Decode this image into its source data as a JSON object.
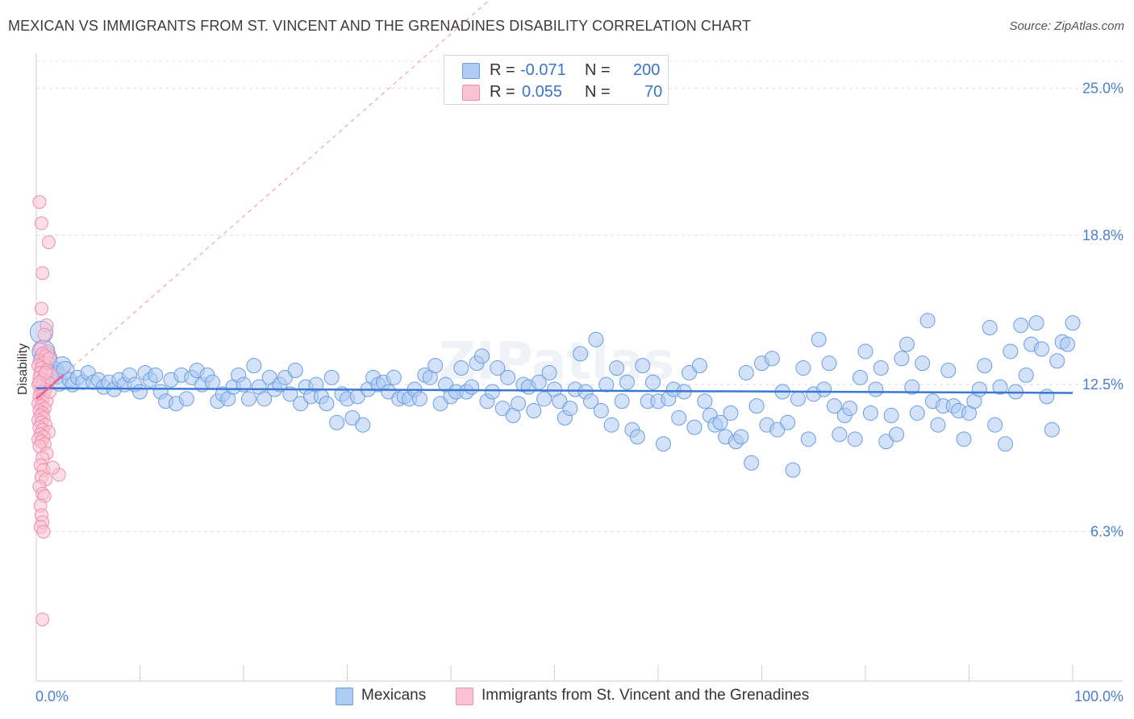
{
  "title": "MEXICAN VS IMMIGRANTS FROM ST. VINCENT AND THE GRENADINES DISABILITY CORRELATION CHART",
  "source": "Source: ZipAtlas.com",
  "watermark": "ZIPatlas",
  "legend": {
    "rows": [
      {
        "r_label": "R =",
        "r_value": "-0.071",
        "n_label": "N =",
        "n_value": "200",
        "color": "#aecbf2",
        "border": "#6b9de0"
      },
      {
        "r_label": "R =",
        "r_value": "0.055",
        "n_label": "N =",
        "n_value": "70",
        "color": "#f9c3d3",
        "border": "#ee8fac"
      }
    ]
  },
  "bottom_legend": [
    {
      "label": "Mexicans",
      "color": "#aecbf2",
      "border": "#6b9de0"
    },
    {
      "label": "Immigrants from St. Vincent and the Grenadines",
      "color": "#f9c3d3",
      "border": "#ee8fac"
    }
  ],
  "chart_data": {
    "type": "scatter",
    "title": "MEXICAN VS IMMIGRANTS FROM ST. VINCENT AND THE GRENADINES DISABILITY CORRELATION CHART",
    "xlabel": "",
    "ylabel": "Disability",
    "xlim": [
      0,
      100
    ],
    "ylim": [
      0,
      26.2
    ],
    "x_tick_labels": [
      "0.0%",
      "100.0%"
    ],
    "y_ticks": [
      6.3,
      12.5,
      18.8,
      25.0
    ],
    "y_tick_labels": [
      "6.3%",
      "12.5%",
      "18.8%",
      "25.0%"
    ],
    "grid": true,
    "legend_position": "top-center",
    "colors": {
      "mexicans": "#6b9de0",
      "mexicans_fill": "#aecbf2",
      "svg": "#ee8fac",
      "svg_fill": "#f9c3d3",
      "trend_blue": "#3a78d4",
      "trend_pink": "#e8618f"
    },
    "series": [
      {
        "name": "Mexicans",
        "R": -0.071,
        "N": 200,
        "trend": {
          "x": [
            0,
            100
          ],
          "y": [
            12.35,
            12.15
          ]
        },
        "points": [
          [
            0.5,
            14.7
          ],
          [
            0.7,
            13.9
          ],
          [
            0.9,
            13.6
          ],
          [
            1.2,
            13.3
          ],
          [
            1.5,
            13.0
          ],
          [
            1.8,
            13.1
          ],
          [
            2.0,
            12.9
          ],
          [
            2.2,
            12.6
          ],
          [
            2.5,
            13.3
          ],
          [
            2.8,
            13.1
          ],
          [
            3.2,
            12.7
          ],
          [
            3.5,
            12.5
          ],
          [
            4.0,
            12.8
          ],
          [
            4.5,
            12.6
          ],
          [
            5.0,
            13.0
          ],
          [
            5.5,
            12.6
          ],
          [
            6.0,
            12.7
          ],
          [
            6.5,
            12.4
          ],
          [
            7.0,
            12.6
          ],
          [
            7.5,
            12.3
          ],
          [
            8.0,
            12.7
          ],
          [
            8.5,
            12.5
          ],
          [
            9.0,
            12.9
          ],
          [
            9.5,
            12.5
          ],
          [
            10.0,
            12.2
          ],
          [
            10.5,
            13.0
          ],
          [
            11.0,
            12.7
          ],
          [
            11.5,
            12.9
          ],
          [
            12.0,
            12.2
          ],
          [
            12.5,
            11.8
          ],
          [
            13.0,
            12.7
          ],
          [
            13.5,
            11.7
          ],
          [
            14.0,
            12.9
          ],
          [
            14.5,
            11.9
          ],
          [
            15.0,
            12.8
          ],
          [
            15.5,
            13.1
          ],
          [
            16.0,
            12.5
          ],
          [
            16.5,
            12.9
          ],
          [
            17.0,
            12.6
          ],
          [
            17.5,
            11.8
          ],
          [
            18.0,
            12.1
          ],
          [
            18.5,
            11.9
          ],
          [
            19.0,
            12.4
          ],
          [
            19.5,
            12.9
          ],
          [
            20.0,
            12.5
          ],
          [
            20.5,
            11.9
          ],
          [
            21.0,
            13.3
          ],
          [
            21.5,
            12.4
          ],
          [
            22.0,
            11.9
          ],
          [
            22.5,
            12.8
          ],
          [
            23.0,
            12.3
          ],
          [
            23.5,
            12.5
          ],
          [
            24.0,
            12.8
          ],
          [
            24.5,
            12.1
          ],
          [
            25.0,
            13.1
          ],
          [
            25.5,
            11.7
          ],
          [
            26.0,
            12.4
          ],
          [
            26.5,
            12.0
          ],
          [
            27.0,
            12.5
          ],
          [
            27.5,
            12.0
          ],
          [
            28.0,
            11.7
          ],
          [
            28.5,
            12.8
          ],
          [
            29.0,
            10.9
          ],
          [
            29.5,
            12.1
          ],
          [
            30.0,
            11.9
          ],
          [
            30.5,
            11.1
          ],
          [
            31.0,
            12.0
          ],
          [
            31.5,
            10.8
          ],
          [
            32.0,
            12.3
          ],
          [
            32.5,
            12.8
          ],
          [
            33.0,
            12.5
          ],
          [
            33.5,
            12.6
          ],
          [
            34.0,
            12.2
          ],
          [
            34.5,
            12.8
          ],
          [
            35.0,
            11.9
          ],
          [
            35.5,
            12.0
          ],
          [
            36.0,
            11.9
          ],
          [
            36.5,
            12.3
          ],
          [
            37.0,
            11.9
          ],
          [
            37.5,
            12.9
          ],
          [
            38.0,
            12.8
          ],
          [
            38.5,
            13.3
          ],
          [
            39.0,
            11.7
          ],
          [
            39.5,
            12.5
          ],
          [
            40.0,
            12.0
          ],
          [
            40.5,
            12.2
          ],
          [
            41.0,
            13.2
          ],
          [
            41.5,
            12.2
          ],
          [
            42.0,
            12.4
          ],
          [
            42.5,
            13.4
          ],
          [
            43.0,
            13.7
          ],
          [
            43.5,
            11.8
          ],
          [
            44.0,
            12.2
          ],
          [
            44.5,
            13.2
          ],
          [
            45.0,
            11.5
          ],
          [
            45.5,
            12.8
          ],
          [
            46.0,
            11.2
          ],
          [
            46.5,
            11.7
          ],
          [
            47.0,
            12.5
          ],
          [
            47.5,
            12.4
          ],
          [
            48.0,
            11.4
          ],
          [
            48.5,
            12.6
          ],
          [
            49.0,
            11.9
          ],
          [
            49.5,
            13.0
          ],
          [
            50.0,
            12.3
          ],
          [
            50.5,
            11.8
          ],
          [
            51.0,
            11.1
          ],
          [
            51.5,
            11.5
          ],
          [
            52.0,
            12.3
          ],
          [
            52.5,
            13.8
          ],
          [
            53.0,
            12.2
          ],
          [
            53.5,
            11.8
          ],
          [
            54.0,
            14.4
          ],
          [
            54.5,
            11.4
          ],
          [
            55.0,
            12.5
          ],
          [
            55.5,
            10.8
          ],
          [
            56.0,
            13.2
          ],
          [
            56.5,
            11.8
          ],
          [
            57.0,
            12.6
          ],
          [
            57.5,
            10.6
          ],
          [
            58.0,
            10.3
          ],
          [
            58.5,
            13.3
          ],
          [
            59.0,
            11.8
          ],
          [
            59.5,
            12.6
          ],
          [
            60.0,
            11.8
          ],
          [
            60.5,
            10.0
          ],
          [
            61.0,
            11.9
          ],
          [
            61.5,
            12.3
          ],
          [
            62.0,
            11.1
          ],
          [
            62.5,
            12.2
          ],
          [
            63.0,
            13.0
          ],
          [
            63.5,
            10.7
          ],
          [
            64.0,
            13.3
          ],
          [
            64.5,
            11.8
          ],
          [
            65.0,
            11.2
          ],
          [
            65.5,
            10.8
          ],
          [
            66.0,
            10.9
          ],
          [
            66.5,
            10.3
          ],
          [
            67.0,
            11.3
          ],
          [
            67.5,
            10.1
          ],
          [
            68.0,
            10.3
          ],
          [
            68.5,
            13.0
          ],
          [
            69.0,
            9.2
          ],
          [
            69.5,
            11.6
          ],
          [
            70.0,
            13.4
          ],
          [
            70.5,
            10.8
          ],
          [
            71.0,
            13.6
          ],
          [
            71.5,
            10.6
          ],
          [
            72.0,
            12.2
          ],
          [
            72.5,
            10.9
          ],
          [
            73.0,
            8.9
          ],
          [
            73.5,
            11.9
          ],
          [
            74.0,
            13.2
          ],
          [
            74.5,
            10.2
          ],
          [
            75.0,
            12.1
          ],
          [
            75.5,
            14.4
          ],
          [
            76.0,
            12.3
          ],
          [
            76.5,
            13.4
          ],
          [
            77.0,
            11.6
          ],
          [
            77.5,
            10.4
          ],
          [
            78.0,
            11.2
          ],
          [
            78.5,
            11.5
          ],
          [
            79.0,
            10.2
          ],
          [
            79.5,
            12.8
          ],
          [
            80.0,
            13.9
          ],
          [
            80.5,
            11.3
          ],
          [
            81.0,
            12.3
          ],
          [
            81.5,
            13.2
          ],
          [
            82.0,
            10.1
          ],
          [
            82.5,
            11.2
          ],
          [
            83.0,
            10.4
          ],
          [
            83.5,
            13.6
          ],
          [
            84.0,
            14.2
          ],
          [
            84.5,
            12.4
          ],
          [
            85.0,
            11.3
          ],
          [
            85.5,
            13.4
          ],
          [
            86.0,
            15.2
          ],
          [
            86.5,
            11.8
          ],
          [
            87.0,
            10.8
          ],
          [
            87.5,
            11.6
          ],
          [
            88.0,
            13.1
          ],
          [
            88.5,
            11.6
          ],
          [
            89.0,
            11.4
          ],
          [
            89.5,
            10.2
          ],
          [
            90.0,
            11.3
          ],
          [
            90.5,
            11.8
          ],
          [
            91.0,
            12.3
          ],
          [
            91.5,
            13.3
          ],
          [
            92.0,
            14.9
          ],
          [
            92.5,
            10.8
          ],
          [
            93.0,
            12.4
          ],
          [
            93.5,
            10.0
          ],
          [
            94.0,
            13.9
          ],
          [
            94.5,
            12.2
          ],
          [
            95.0,
            15.0
          ],
          [
            95.5,
            12.9
          ],
          [
            96.0,
            14.2
          ],
          [
            96.5,
            15.1
          ],
          [
            97.0,
            14.0
          ],
          [
            97.5,
            12.0
          ],
          [
            98.0,
            10.6
          ],
          [
            98.5,
            13.5
          ],
          [
            99.0,
            14.3
          ],
          [
            99.5,
            14.2
          ],
          [
            100.0,
            15.1
          ]
        ]
      },
      {
        "name": "Immigrants from St. Vincent and the Grenadines",
        "R": 0.055,
        "N": 70,
        "trend": {
          "x": [
            0,
            2.6
          ],
          "y": [
            11.9,
            12.9
          ]
        },
        "points": [
          [
            0.3,
            20.2
          ],
          [
            0.5,
            19.3
          ],
          [
            1.2,
            18.5
          ],
          [
            0.6,
            17.2
          ],
          [
            0.5,
            15.7
          ],
          [
            1.0,
            15.0
          ],
          [
            0.8,
            14.6
          ],
          [
            0.4,
            14.0
          ],
          [
            1.1,
            13.9
          ],
          [
            0.6,
            13.8
          ],
          [
            0.9,
            13.7
          ],
          [
            0.3,
            13.5
          ],
          [
            0.7,
            13.4
          ],
          [
            1.3,
            13.6
          ],
          [
            0.2,
            13.3
          ],
          [
            0.5,
            13.2
          ],
          [
            1.0,
            13.1
          ],
          [
            0.4,
            13.0
          ],
          [
            0.8,
            12.9
          ],
          [
            1.5,
            12.9
          ],
          [
            0.3,
            12.8
          ],
          [
            0.6,
            12.7
          ],
          [
            1.1,
            12.6
          ],
          [
            0.2,
            12.5
          ],
          [
            0.5,
            12.4
          ],
          [
            0.9,
            12.3
          ],
          [
            0.4,
            12.2
          ],
          [
            0.7,
            12.1
          ],
          [
            0.3,
            12.0
          ],
          [
            0.6,
            11.9
          ],
          [
            1.0,
            11.8
          ],
          [
            0.2,
            11.7
          ],
          [
            0.5,
            11.6
          ],
          [
            0.8,
            11.5
          ],
          [
            0.3,
            11.4
          ],
          [
            0.6,
            11.3
          ],
          [
            0.4,
            11.2
          ],
          [
            0.7,
            11.1
          ],
          [
            0.2,
            11.0
          ],
          [
            0.5,
            10.9
          ],
          [
            0.9,
            10.8
          ],
          [
            0.3,
            10.7
          ],
          [
            0.6,
            10.6
          ],
          [
            1.2,
            10.5
          ],
          [
            0.4,
            10.4
          ],
          [
            0.7,
            10.3
          ],
          [
            0.2,
            10.2
          ],
          [
            0.5,
            10.1
          ],
          [
            0.8,
            10.0
          ],
          [
            0.3,
            9.9
          ],
          [
            1.0,
            9.6
          ],
          [
            0.6,
            9.4
          ],
          [
            0.4,
            9.1
          ],
          [
            0.7,
            8.9
          ],
          [
            2.2,
            8.7
          ],
          [
            0.5,
            8.6
          ],
          [
            0.9,
            8.5
          ],
          [
            0.3,
            8.2
          ],
          [
            0.6,
            7.9
          ],
          [
            0.8,
            7.8
          ],
          [
            0.4,
            7.4
          ],
          [
            0.5,
            7.0
          ],
          [
            0.6,
            6.7
          ],
          [
            0.4,
            6.5
          ],
          [
            0.7,
            6.3
          ],
          [
            1.6,
            9.0
          ],
          [
            1.3,
            12.2
          ],
          [
            0.9,
            13.0
          ],
          [
            0.3,
            12.6
          ],
          [
            0.6,
            2.6
          ]
        ]
      }
    ]
  }
}
